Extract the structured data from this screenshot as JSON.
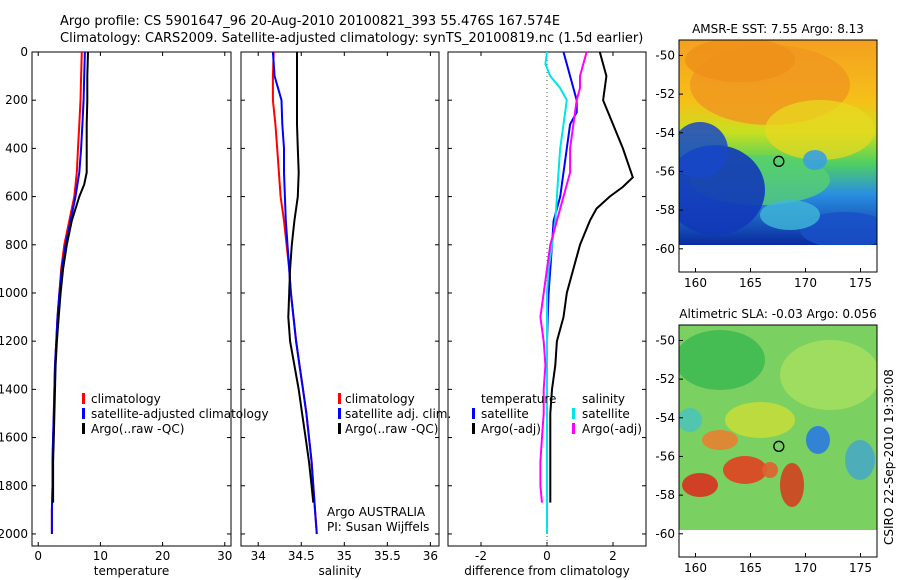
{
  "header": {
    "title_line1": "Argo profile: CS 5901647_96 20-Aug-2010 20100821_393 55.476S 167.574E",
    "title_line2": "Climatology: CARS2009. Satellite-adjusted climatology: synTS_20100819.nc (1.5d earlier)"
  },
  "credit": "CSIRO 22-Sep-2010 19:30:08",
  "colors": {
    "climatology": "#ff0000",
    "satellite": "#0000ff",
    "argo": "#000000",
    "sat_salinity": "#00e5e5",
    "argo_salinity": "#ff00ff"
  },
  "chart_data": [
    {
      "type": "line",
      "name": "temperature-profile",
      "xlabel": "temperature",
      "xlim": [
        -1,
        31
      ],
      "ylim": [
        0,
        2050
      ],
      "y_inverted": true,
      "xticks": [
        0,
        10,
        20,
        30
      ],
      "xtick_labels": [
        "0",
        "10",
        "20",
        "30"
      ],
      "yticks": [
        0,
        200,
        400,
        600,
        800,
        1000,
        1200,
        1400,
        1600,
        1800,
        2000
      ],
      "ytick_labels": [
        "0",
        "200",
        "400",
        "600",
        "800",
        "1000",
        "1200",
        "1400",
        "1600",
        "1800",
        "2000"
      ],
      "legend": [
        "climatology",
        "satellite-adjusted climatology",
        "Argo(..raw -QC)"
      ],
      "series": [
        {
          "name": "climatology",
          "color": "#ff0000",
          "points": [
            [
              7.0,
              0
            ],
            [
              6.9,
              100
            ],
            [
              6.8,
              200
            ],
            [
              6.6,
              300
            ],
            [
              6.4,
              400
            ],
            [
              6.2,
              500
            ],
            [
              5.8,
              600
            ],
            [
              5.0,
              700
            ],
            [
              4.2,
              800
            ],
            [
              3.7,
              900
            ],
            [
              3.4,
              1000
            ],
            [
              3.1,
              1100
            ],
            [
              2.9,
              1200
            ],
            [
              2.7,
              1300
            ],
            [
              2.6,
              1400
            ],
            [
              2.5,
              1500
            ],
            [
              2.4,
              1600
            ],
            [
              2.3,
              1700
            ],
            [
              2.3,
              1800
            ],
            [
              2.2,
              1900
            ],
            [
              2.2,
              2000
            ]
          ]
        },
        {
          "name": "satellite-adjusted climatology",
          "color": "#0000ff",
          "points": [
            [
              7.5,
              0
            ],
            [
              7.4,
              100
            ],
            [
              7.3,
              200
            ],
            [
              7.1,
              300
            ],
            [
              6.9,
              400
            ],
            [
              6.6,
              500
            ],
            [
              6.0,
              600
            ],
            [
              5.2,
              700
            ],
            [
              4.4,
              800
            ],
            [
              3.8,
              900
            ],
            [
              3.4,
              1000
            ],
            [
              3.1,
              1100
            ],
            [
              2.9,
              1200
            ],
            [
              2.7,
              1300
            ],
            [
              2.6,
              1400
            ],
            [
              2.5,
              1500
            ],
            [
              2.4,
              1600
            ],
            [
              2.3,
              1700
            ],
            [
              2.3,
              1800
            ],
            [
              2.2,
              1900
            ],
            [
              2.2,
              2000
            ]
          ]
        },
        {
          "name": "Argo(..raw -QC)",
          "color": "#000000",
          "points": [
            [
              8.0,
              0
            ],
            [
              7.9,
              100
            ],
            [
              7.9,
              200
            ],
            [
              7.8,
              300
            ],
            [
              7.8,
              400
            ],
            [
              7.8,
              500
            ],
            [
              7.4,
              550
            ],
            [
              6.6,
              600
            ],
            [
              5.4,
              700
            ],
            [
              4.6,
              800
            ],
            [
              4.0,
              900
            ],
            [
              3.6,
              1000
            ],
            [
              3.3,
              1100
            ],
            [
              3.0,
              1200
            ],
            [
              2.8,
              1300
            ],
            [
              2.7,
              1400
            ],
            [
              2.6,
              1500
            ],
            [
              2.5,
              1600
            ],
            [
              2.4,
              1700
            ],
            [
              2.4,
              1800
            ],
            [
              2.4,
              1870
            ]
          ]
        }
      ]
    },
    {
      "type": "line",
      "name": "salinity-profile",
      "xlabel": "salinity",
      "xlim": [
        33.8,
        36.1
      ],
      "ylim": [
        0,
        2050
      ],
      "y_inverted": true,
      "xticks": [
        34,
        34.5,
        35,
        35.5,
        36
      ],
      "xtick_labels": [
        "34",
        "34.5",
        "35",
        "35.5",
        "36"
      ],
      "legend": [
        "climatology",
        "satellite adj. clim.",
        "Argo(..raw -QC)"
      ],
      "annotation_line1": "Argo AUSTRALIA",
      "annotation_line2": "PI: Susan Wijffels",
      "series": [
        {
          "name": "climatology",
          "color": "#ff0000",
          "points": [
            [
              34.18,
              0
            ],
            [
              34.17,
              100
            ],
            [
              34.17,
              200
            ],
            [
              34.2,
              300
            ],
            [
              34.22,
              400
            ],
            [
              34.24,
              500
            ],
            [
              34.26,
              600
            ],
            [
              34.3,
              700
            ],
            [
              34.33,
              800
            ],
            [
              34.36,
              900
            ],
            [
              34.38,
              1000
            ],
            [
              34.41,
              1100
            ],
            [
              34.44,
              1200
            ],
            [
              34.48,
              1300
            ],
            [
              34.52,
              1400
            ],
            [
              34.56,
              1500
            ],
            [
              34.59,
              1600
            ],
            [
              34.62,
              1700
            ],
            [
              34.64,
              1800
            ],
            [
              34.66,
              1900
            ],
            [
              34.68,
              2000
            ]
          ]
        },
        {
          "name": "satellite adj. clim.",
          "color": "#0000ff",
          "points": [
            [
              34.17,
              0
            ],
            [
              34.19,
              100
            ],
            [
              34.27,
              200
            ],
            [
              34.28,
              300
            ],
            [
              34.3,
              400
            ],
            [
              34.3,
              500
            ],
            [
              34.31,
              600
            ],
            [
              34.32,
              700
            ],
            [
              34.34,
              800
            ],
            [
              34.36,
              900
            ],
            [
              34.38,
              1000
            ],
            [
              34.41,
              1100
            ],
            [
              34.44,
              1200
            ],
            [
              34.48,
              1300
            ],
            [
              34.52,
              1400
            ],
            [
              34.56,
              1500
            ],
            [
              34.59,
              1600
            ],
            [
              34.62,
              1700
            ],
            [
              34.64,
              1800
            ],
            [
              34.66,
              1900
            ],
            [
              34.68,
              2000
            ]
          ]
        },
        {
          "name": "Argo(..raw -QC)",
          "color": "#000000",
          "points": [
            [
              34.45,
              0
            ],
            [
              34.45,
              100
            ],
            [
              34.45,
              200
            ],
            [
              34.45,
              300
            ],
            [
              34.46,
              400
            ],
            [
              34.47,
              500
            ],
            [
              34.46,
              600
            ],
            [
              34.42,
              700
            ],
            [
              34.39,
              800
            ],
            [
              34.37,
              900
            ],
            [
              34.36,
              1000
            ],
            [
              34.35,
              1100
            ],
            [
              34.37,
              1200
            ],
            [
              34.42,
              1300
            ],
            [
              34.47,
              1400
            ],
            [
              34.51,
              1500
            ],
            [
              34.55,
              1600
            ],
            [
              34.59,
              1700
            ],
            [
              34.62,
              1800
            ],
            [
              34.64,
              1870
            ]
          ]
        }
      ]
    },
    {
      "type": "line",
      "name": "difference-profile",
      "xlabel": "difference from climatology",
      "xlim": [
        -3,
        3
      ],
      "ylim": [
        0,
        2050
      ],
      "y_inverted": true,
      "xticks": [
        -2,
        0,
        2
      ],
      "xtick_labels": [
        "-2",
        "0",
        "2"
      ],
      "legend_temp_header": "temperature",
      "legend_sal_header": "salinity",
      "legend_temp": [
        "satellite",
        "Argo(-adj)"
      ],
      "legend_sal": [
        "satellite",
        "Argo(-adj)"
      ],
      "series": [
        {
          "name": "temperature satellite",
          "color": "#0000ff",
          "points": [
            [
              0.5,
              0
            ],
            [
              0.6,
              50
            ],
            [
              0.7,
              100
            ],
            [
              0.8,
              150
            ],
            [
              0.9,
              200
            ],
            [
              0.9,
              250
            ],
            [
              0.7,
              300
            ],
            [
              0.6,
              400
            ],
            [
              0.5,
              500
            ],
            [
              0.4,
              600
            ],
            [
              0.2,
              700
            ],
            [
              0.15,
              800
            ],
            [
              0.1,
              900
            ],
            [
              0.05,
              1000
            ],
            [
              0.02,
              1100
            ],
            [
              0.0,
              1200
            ],
            [
              0.0,
              1400
            ],
            [
              0.0,
              1600
            ],
            [
              0.0,
              1800
            ],
            [
              0.0,
              2000
            ]
          ]
        },
        {
          "name": "temperature Argo(-adj)",
          "color": "#000000",
          "points": [
            [
              1.6,
              0
            ],
            [
              1.7,
              50
            ],
            [
              1.8,
              100
            ],
            [
              1.7,
              200
            ],
            [
              2.0,
              300
            ],
            [
              2.3,
              400
            ],
            [
              2.5,
              480
            ],
            [
              2.6,
              520
            ],
            [
              2.3,
              560
            ],
            [
              1.9,
              600
            ],
            [
              1.5,
              650
            ],
            [
              1.3,
              700
            ],
            [
              1.0,
              800
            ],
            [
              0.8,
              900
            ],
            [
              0.6,
              1000
            ],
            [
              0.5,
              1100
            ],
            [
              0.3,
              1200
            ],
            [
              0.25,
              1300
            ],
            [
              0.15,
              1400
            ],
            [
              0.1,
              1500
            ],
            [
              0.1,
              1600
            ],
            [
              0.1,
              1700
            ],
            [
              0.1,
              1800
            ],
            [
              0.1,
              1870
            ]
          ]
        },
        {
          "name": "salinity satellite",
          "color": "#00e5e5",
          "points": [
            [
              0.0,
              0
            ],
            [
              -0.05,
              50
            ],
            [
              0.1,
              100
            ],
            [
              0.4,
              150
            ],
            [
              0.6,
              200
            ],
            [
              0.5,
              300
            ],
            [
              0.4,
              400
            ],
            [
              0.35,
              500
            ],
            [
              0.3,
              600
            ],
            [
              0.25,
              700
            ],
            [
              0.15,
              800
            ],
            [
              0.05,
              900
            ],
            [
              0.0,
              1000
            ],
            [
              0.0,
              1200
            ],
            [
              0.0,
              1400
            ],
            [
              0.0,
              1600
            ],
            [
              0.0,
              1800
            ],
            [
              0.0,
              2000
            ]
          ]
        },
        {
          "name": "salinity Argo(-adj)",
          "color": "#ff00ff",
          "points": [
            [
              1.2,
              0
            ],
            [
              1.1,
              50
            ],
            [
              1.0,
              100
            ],
            [
              1.0,
              150
            ],
            [
              0.9,
              200
            ],
            [
              0.8,
              300
            ],
            [
              0.7,
              400
            ],
            [
              0.7,
              500
            ],
            [
              0.5,
              600
            ],
            [
              0.3,
              700
            ],
            [
              0.1,
              800
            ],
            [
              0.0,
              900
            ],
            [
              -0.1,
              1000
            ],
            [
              -0.2,
              1100
            ],
            [
              -0.1,
              1200
            ],
            [
              -0.05,
              1300
            ],
            [
              -0.1,
              1400
            ],
            [
              -0.1,
              1500
            ],
            [
              -0.15,
              1600
            ],
            [
              -0.2,
              1700
            ],
            [
              -0.2,
              1800
            ],
            [
              -0.15,
              1870
            ]
          ]
        }
      ]
    },
    {
      "type": "heatmap",
      "name": "sst-map",
      "title": "AMSR-E SST: 7.55 Argo: 8.13",
      "xlim": [
        158.5,
        176.5
      ],
      "ylim": [
        -61.2,
        -49.2
      ],
      "xticks": [
        160,
        165,
        170,
        175
      ],
      "xtick_labels": [
        "160",
        "165",
        "170",
        "175"
      ],
      "yticks": [
        -50,
        -52,
        -54,
        -56,
        -58,
        -60
      ],
      "ytick_labels": [
        "-50",
        "-52",
        "-54",
        "-56",
        "-58",
        "-60"
      ],
      "data_lat_range": [
        -60,
        -49.2
      ],
      "marker": {
        "lon": 167.574,
        "lat": -55.476
      }
    },
    {
      "type": "heatmap",
      "name": "sla-map",
      "title": "Altimetric SLA: -0.03 Argo: 0.056",
      "xlim": [
        158.5,
        176.5
      ],
      "ylim": [
        -61.2,
        -49.2
      ],
      "xticks": [
        160,
        165,
        170,
        175
      ],
      "xtick_labels": [
        "160",
        "165",
        "170",
        "175"
      ],
      "yticks": [
        -50,
        -52,
        -54,
        -56,
        -58,
        -60
      ],
      "ytick_labels": [
        "-50",
        "-52",
        "-54",
        "-56",
        "-58",
        "-60"
      ],
      "data_lat_range": [
        -60,
        -49.2
      ],
      "marker": {
        "lon": 167.574,
        "lat": -55.476
      }
    }
  ]
}
